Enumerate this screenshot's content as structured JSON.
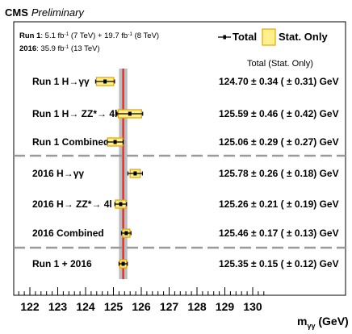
{
  "header": {
    "experiment": "CMS",
    "status": "Preliminary"
  },
  "lumi": {
    "run1_label": "Run 1",
    "run1_lumi_a": ": 5.1 fb",
    "run1_lumi_a_exp": "-1",
    "run1_lumi_a_energy": " (7 TeV) + 19.7 fb",
    "run1_lumi_b_exp": "-1",
    "run1_lumi_b_energy": " (8 TeV)",
    "y2016_label": "2016",
    "y2016_lumi": ": 35.9 fb",
    "y2016_lumi_exp": "-1",
    "y2016_energy": " (13 TeV)"
  },
  "legend": {
    "total": "Total",
    "stat_only": "Stat. Only",
    "position": "top-right"
  },
  "column_header": "Total  (Stat. Only)",
  "colors": {
    "central_line": "#e8231f",
    "total_band": "#bdbdbd",
    "stat_fill": "#fff08c",
    "stat_edge": "#e7a600",
    "separator": "#9a9a9a"
  },
  "chart_data": {
    "type": "scatter",
    "subtype": "forest-plot",
    "xlabel_main": "m",
    "xlabel_sub": "γγ",
    "xlabel_unit": " (GeV)",
    "xlim": [
      121.5,
      130.6
    ],
    "xticks": [
      "122",
      "123",
      "124",
      "125",
      "126",
      "127",
      "128",
      "129",
      "130"
    ],
    "combined_reference": {
      "value": 125.35,
      "total_unc": 0.15
    },
    "measurements": [
      {
        "label": "Run 1 H→γγ",
        "value": 124.7,
        "total": 0.34,
        "stat": 0.31,
        "text": "124.70 ± 0.34 ( ± 0.31) GeV"
      },
      {
        "label": "Run 1 H→ ZZ*→ 4l",
        "value": 125.59,
        "total": 0.46,
        "stat": 0.42,
        "text": "125.59 ± 0.46 ( ± 0.42) GeV"
      },
      {
        "label": "Run 1 Combined",
        "value": 125.06,
        "total": 0.29,
        "stat": 0.27,
        "text": "125.06 ± 0.29 ( ± 0.27) GeV"
      },
      {
        "label": "2016 H→γγ",
        "value": 125.78,
        "total": 0.26,
        "stat": 0.18,
        "text": "125.78 ± 0.26 ( ± 0.18) GeV"
      },
      {
        "label": "2016 H→ ZZ*→ 4l",
        "value": 125.26,
        "total": 0.21,
        "stat": 0.19,
        "text": "125.26 ± 0.21 ( ± 0.19) GeV"
      },
      {
        "label": "2016 Combined",
        "value": 125.46,
        "total": 0.17,
        "stat": 0.13,
        "text": "125.46 ± 0.17 ( ± 0.13) GeV"
      },
      {
        "label": "Run 1 + 2016",
        "value": 125.35,
        "total": 0.15,
        "stat": 0.12,
        "text": "125.35 ± 0.15 ( ± 0.12) GeV"
      }
    ]
  }
}
